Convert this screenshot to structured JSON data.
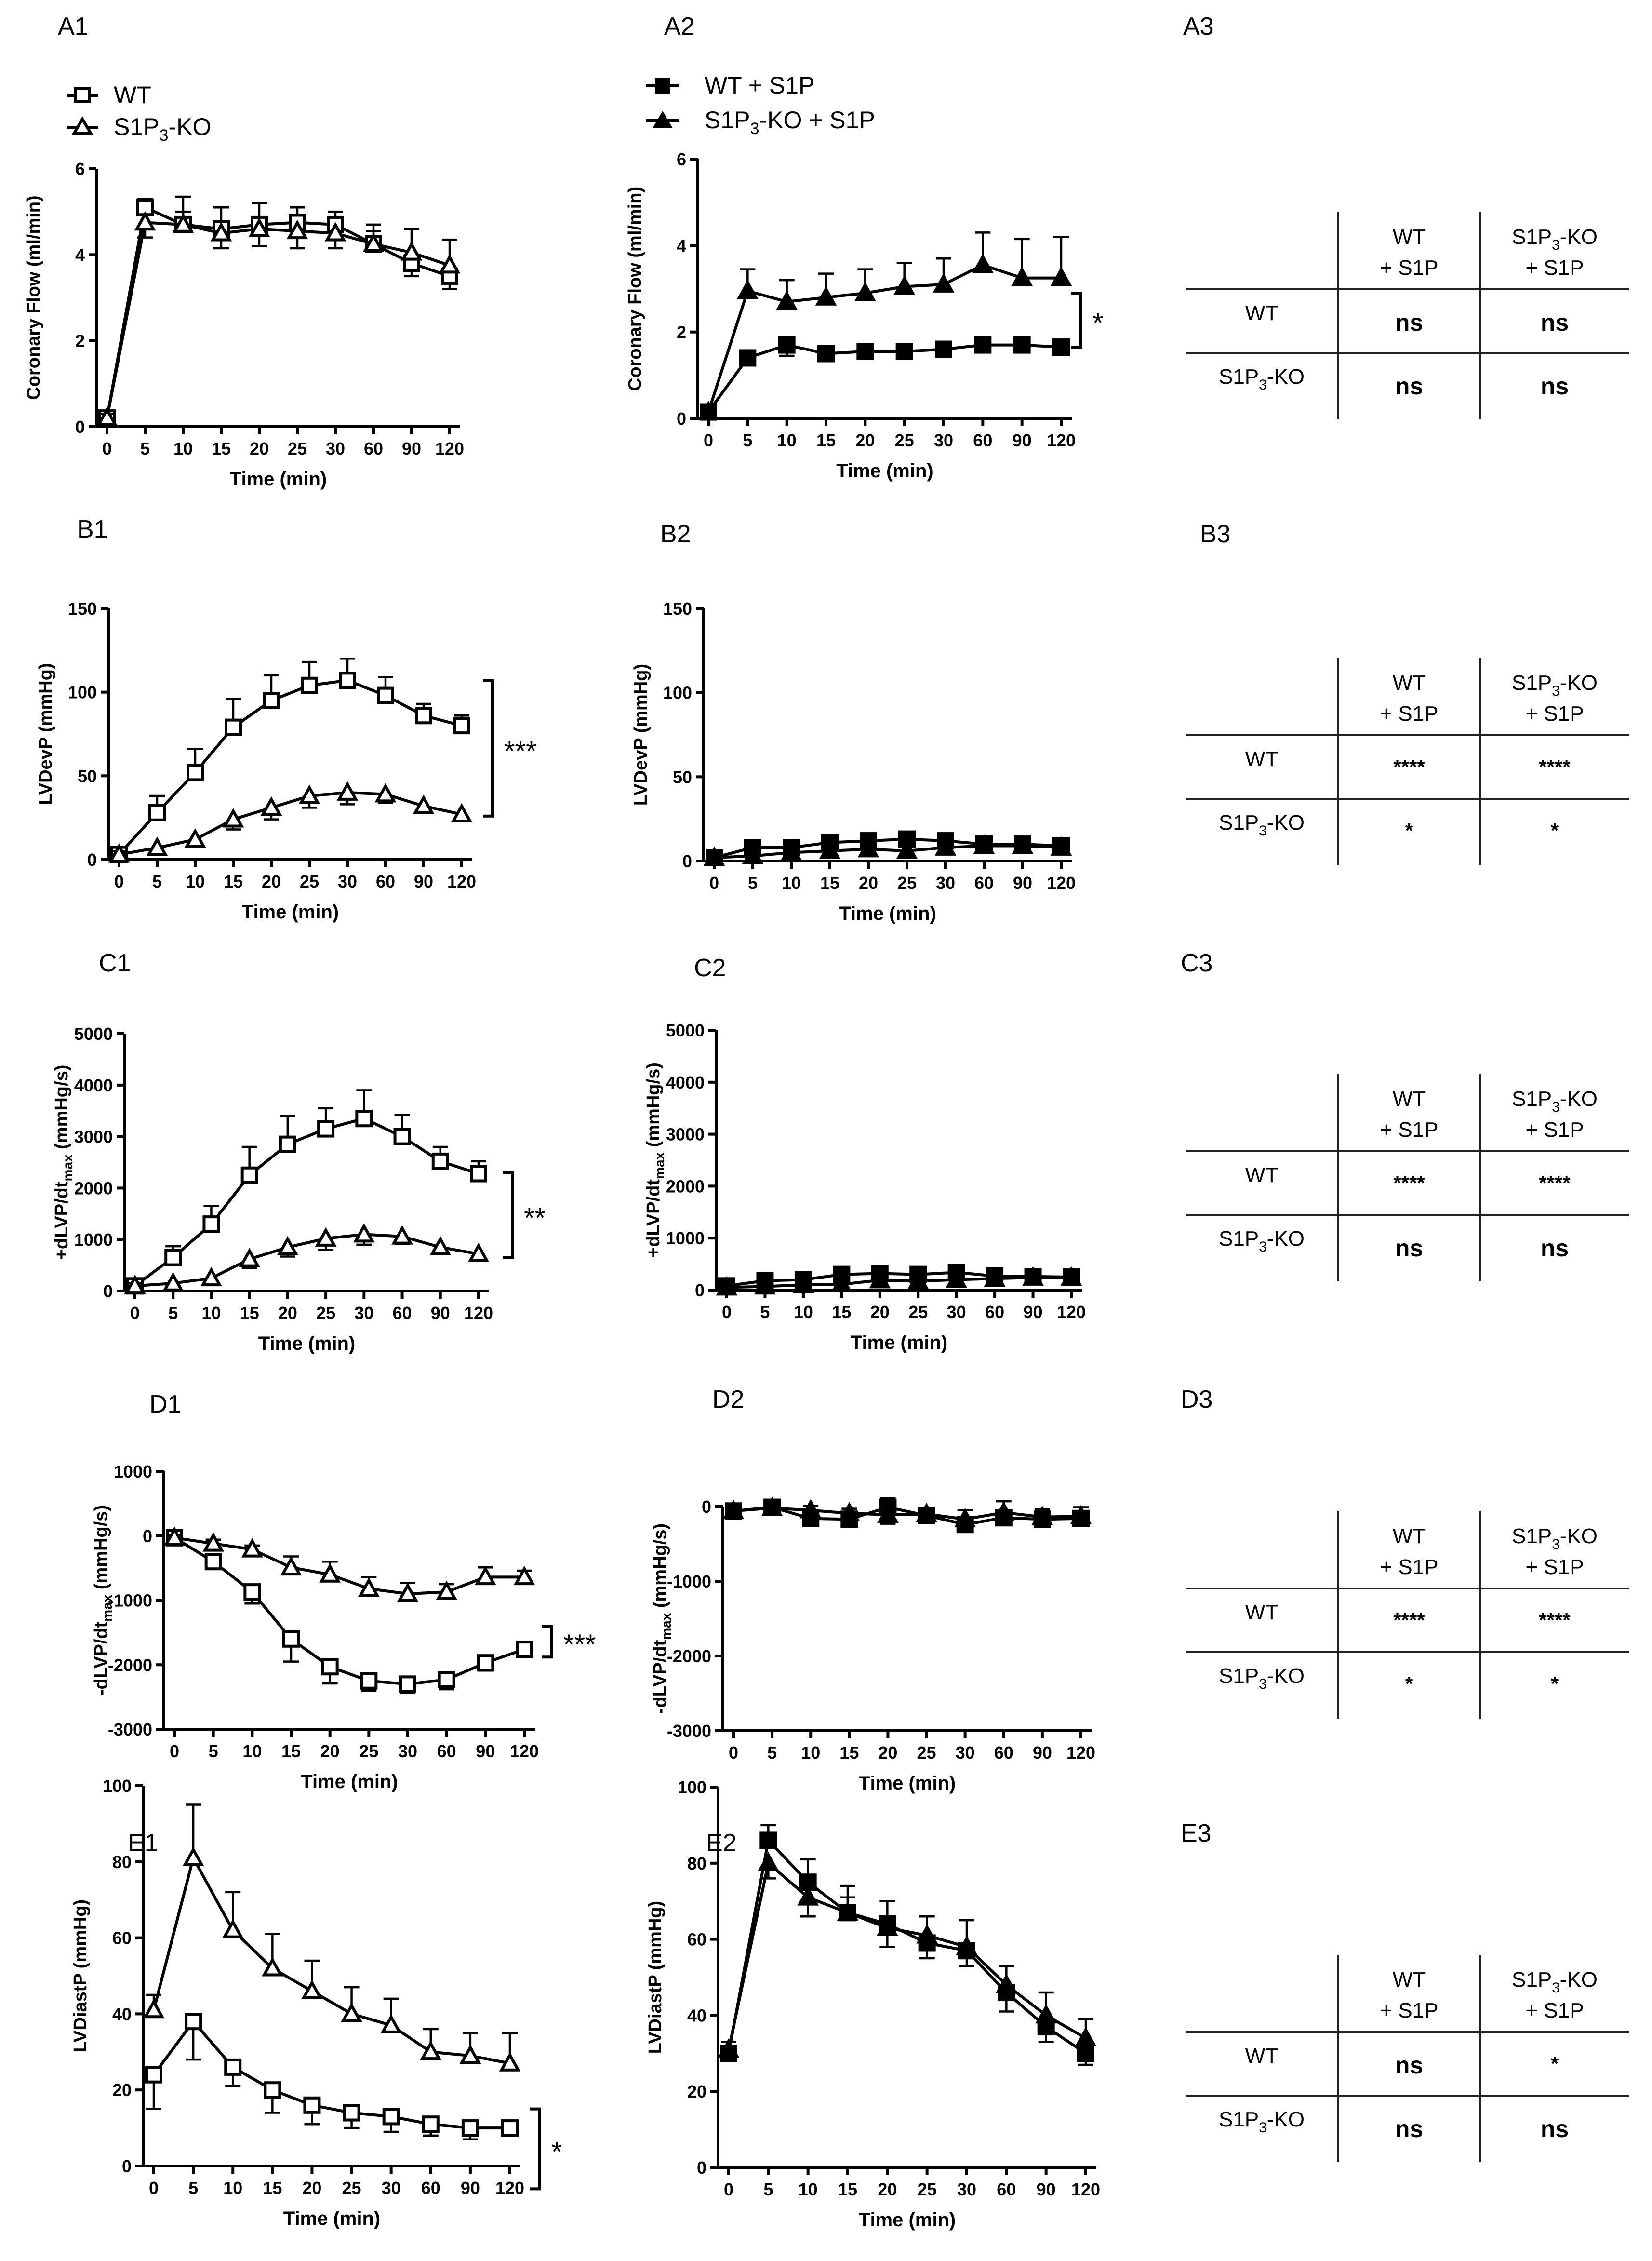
{
  "panel_labels": {
    "A1": "A1",
    "A2": "A2",
    "A3": "A3",
    "B1": "B1",
    "B2": "B2",
    "B3": "B3",
    "C1": "C1",
    "C2": "C2",
    "C3": "C3",
    "D1": "D1",
    "D2": "D2",
    "D3": "D3",
    "E1": "E1",
    "E2": "E2",
    "E3": "E3"
  },
  "legend": {
    "wt": "WT",
    "ko_pre": "S1P",
    "ko_sub": "3",
    "ko_post": "-KO",
    "wt_s1p": "WT + S1P",
    "ko_s1p_pre": "S1P",
    "ko_s1p_sub": "3",
    "ko_s1p_post": "-KO + S1P"
  },
  "colors": {
    "ink": "#000000",
    "open_marker": "#ffffff",
    "filled_marker": "#000000"
  },
  "chart_data": [
    {
      "id": "A1",
      "type": "line",
      "xlabel": "Time (min)",
      "ylabel": "Coronary Flow (ml/min)",
      "categories": [
        "0",
        "5",
        "10",
        "15",
        "20",
        "25",
        "30",
        "60",
        "90",
        "120"
      ],
      "ylim": [
        0,
        6
      ],
      "yticks": [
        0,
        2,
        4,
        6
      ],
      "significance": "",
      "series": [
        {
          "name": "WT",
          "marker": "open-square",
          "values": [
            0.2,
            5.1,
            4.7,
            4.6,
            4.7,
            4.75,
            4.7,
            4.25,
            3.8,
            3.5
          ],
          "errors": [
            0.1,
            0.2,
            0.65,
            0.5,
            0.5,
            0.35,
            0.3,
            0.3,
            0.3,
            0.3
          ]
        },
        {
          "name": "S1P3-KO",
          "marker": "open-triangle",
          "values": [
            0.2,
            4.75,
            4.7,
            4.5,
            4.6,
            4.55,
            4.5,
            4.25,
            4.05,
            3.75
          ],
          "errors": [
            0.1,
            0.35,
            0.3,
            0.35,
            0.4,
            0.4,
            0.35,
            0.45,
            0.55,
            0.6
          ]
        }
      ]
    },
    {
      "id": "A2",
      "type": "line",
      "xlabel": "Time (min)",
      "ylabel": "Coronary Flow (ml/min)",
      "categories": [
        "0",
        "5",
        "10",
        "15",
        "20",
        "25",
        "30",
        "60",
        "90",
        "120"
      ],
      "ylim": [
        0,
        6
      ],
      "yticks": [
        0,
        2,
        4,
        6
      ],
      "significance": "*",
      "series": [
        {
          "name": "WT + S1P",
          "marker": "filled-square",
          "values": [
            0.15,
            1.4,
            1.7,
            1.5,
            1.55,
            1.55,
            1.6,
            1.7,
            1.7,
            1.65
          ],
          "errors": [
            0.1,
            0.15,
            0.25,
            0.15,
            0.15,
            0.15,
            0.15,
            0.1,
            0.1,
            0.1
          ]
        },
        {
          "name": "S1P3-KO + S1P",
          "marker": "filled-triangle",
          "values": [
            0.15,
            2.95,
            2.7,
            2.8,
            2.9,
            3.05,
            3.1,
            3.55,
            3.25,
            3.25
          ],
          "errors": [
            0.1,
            0.5,
            0.5,
            0.55,
            0.55,
            0.55,
            0.6,
            0.75,
            0.9,
            0.95
          ]
        }
      ]
    },
    {
      "id": "B1",
      "type": "line",
      "xlabel": "Time (min)",
      "ylabel": "LVDevP (mmHg)",
      "categories": [
        "0",
        "5",
        "10",
        "15",
        "20",
        "25",
        "30",
        "60",
        "90",
        "120"
      ],
      "ylim": [
        0,
        150
      ],
      "yticks": [
        0,
        50,
        100,
        150
      ],
      "significance": "***",
      "series": [
        {
          "name": "WT",
          "marker": "open-square",
          "values": [
            3,
            28,
            52,
            79,
            95,
            104,
            107,
            98,
            86,
            80
          ],
          "errors": [
            2,
            10,
            14,
            17,
            15,
            14,
            13,
            11,
            7,
            6
          ]
        },
        {
          "name": "S1P3-KO",
          "marker": "open-triangle",
          "values": [
            3,
            7,
            12,
            24,
            31,
            38,
            40,
            39,
            32,
            27
          ],
          "errors": [
            2,
            4,
            4,
            6,
            7,
            7,
            7,
            5,
            4,
            4
          ]
        }
      ]
    },
    {
      "id": "B2",
      "type": "line",
      "xlabel": "Time (min)",
      "ylabel": "LVDevP (mmHg)",
      "categories": [
        "0",
        "5",
        "10",
        "15",
        "20",
        "25",
        "30",
        "60",
        "90",
        "120"
      ],
      "ylim": [
        0,
        150
      ],
      "yticks": [
        0,
        50,
        100,
        150
      ],
      "significance": "",
      "series": [
        {
          "name": "WT + S1P",
          "marker": "filled-square",
          "values": [
            2,
            8,
            8,
            11,
            12,
            13,
            12,
            10,
            10,
            9
          ],
          "errors": [
            1,
            2,
            2,
            2,
            2,
            2,
            2,
            2,
            2,
            2
          ]
        },
        {
          "name": "S1P3-KO + S1P",
          "marker": "filled-triangle",
          "values": [
            2,
            3,
            5,
            6,
            7,
            6,
            8,
            9,
            9,
            8
          ],
          "errors": [
            1,
            2,
            2,
            2,
            2,
            2,
            2,
            2,
            2,
            2
          ]
        }
      ]
    },
    {
      "id": "C1",
      "type": "line",
      "xlabel": "Time (min)",
      "ylabel_pre": "+dLVP/dt",
      "ylabel_sub": "max",
      "ylabel_post": " (mmHg/s)",
      "categories": [
        "0",
        "5",
        "10",
        "15",
        "20",
        "25",
        "30",
        "60",
        "90",
        "120"
      ],
      "ylim": [
        0,
        5000
      ],
      "yticks": [
        0,
        1000,
        2000,
        3000,
        4000,
        5000
      ],
      "significance": "**",
      "series": [
        {
          "name": "WT",
          "marker": "open-square",
          "values": [
            100,
            650,
            1300,
            2250,
            2850,
            3150,
            3350,
            3000,
            2520,
            2280
          ],
          "errors": [
            50,
            220,
            350,
            550,
            550,
            400,
            550,
            420,
            280,
            240
          ]
        },
        {
          "name": "S1P3-KO",
          "marker": "open-triangle",
          "values": [
            100,
            150,
            250,
            620,
            850,
            1020,
            1100,
            1060,
            850,
            720
          ],
          "errors": [
            50,
            50,
            60,
            170,
            180,
            220,
            200,
            140,
            120,
            120
          ]
        }
      ]
    },
    {
      "id": "C2",
      "type": "line",
      "xlabel": "Time (min)",
      "ylabel_pre": "+dLVP/dt",
      "ylabel_sub": "max",
      "ylabel_post": " (mmHg/s)",
      "categories": [
        "0",
        "5",
        "10",
        "15",
        "20",
        "25",
        "30",
        "60",
        "90",
        "120"
      ],
      "ylim": [
        0,
        5000
      ],
      "yticks": [
        0,
        1000,
        2000,
        3000,
        4000,
        5000
      ],
      "significance": "",
      "series": [
        {
          "name": "WT + S1P",
          "marker": "filled-square",
          "values": [
            80,
            180,
            200,
            300,
            320,
            300,
            340,
            270,
            260,
            250
          ],
          "errors": [
            40,
            60,
            60,
            70,
            70,
            60,
            70,
            60,
            60,
            60
          ]
        },
        {
          "name": "S1P3-KO + S1P",
          "marker": "filled-triangle",
          "values": [
            50,
            70,
            100,
            110,
            190,
            170,
            200,
            220,
            240,
            240
          ],
          "errors": [
            30,
            40,
            40,
            50,
            60,
            60,
            60,
            60,
            60,
            60
          ]
        }
      ]
    },
    {
      "id": "D1",
      "type": "line",
      "xlabel": "Time (min)",
      "ylabel_pre": "-dLVP/dt",
      "ylabel_sub": "max",
      "ylabel_post": " (mmHg/s)",
      "categories": [
        "0",
        "5",
        "10",
        "15",
        "20",
        "25",
        "30",
        "60",
        "90",
        "120"
      ],
      "ylim": [
        -3000,
        1000
      ],
      "yticks": [
        -3000,
        -2000,
        -1000,
        0,
        1000
      ],
      "significance": "***",
      "series": [
        {
          "name": "WT",
          "marker": "open-square",
          "values": [
            -30,
            -400,
            -870,
            -1600,
            -2030,
            -2250,
            -2300,
            -2230,
            -1970,
            -1760
          ],
          "errors": [
            40,
            80,
            180,
            350,
            260,
            150,
            130,
            150,
            120,
            120
          ]
        },
        {
          "name": "S1P3-KO",
          "marker": "open-triangle",
          "values": [
            -30,
            -120,
            -210,
            -490,
            -600,
            -820,
            -900,
            -870,
            -640,
            -640
          ],
          "errors": [
            40,
            60,
            60,
            170,
            200,
            180,
            170,
            120,
            150,
            100
          ]
        }
      ]
    },
    {
      "id": "D2",
      "type": "line",
      "xlabel": "Time (min)",
      "ylabel_pre": "-dLVP/dt",
      "ylabel_sub": "max",
      "ylabel_post": " (mmHg/s)",
      "categories": [
        "0",
        "5",
        "10",
        "15",
        "20",
        "25",
        "30",
        "60",
        "90",
        "120"
      ],
      "ylim": [
        -3000,
        0
      ],
      "yticks": [
        -3000,
        -2000,
        -1000,
        0
      ],
      "significance": "",
      "series": [
        {
          "name": "WT + S1P",
          "marker": "filled-square",
          "values": [
            -60,
            -10,
            -160,
            -170,
            -10,
            -120,
            -240,
            -150,
            -170,
            -160
          ],
          "errors": [
            40,
            40,
            60,
            60,
            120,
            60,
            70,
            80,
            60,
            70
          ]
        },
        {
          "name": "S1P3-KO + S1P",
          "marker": "filled-triangle",
          "values": [
            -60,
            -20,
            -50,
            -90,
            -110,
            -100,
            -170,
            -80,
            -140,
            -130
          ],
          "errors": [
            40,
            40,
            60,
            60,
            120,
            70,
            120,
            150,
            100,
            120
          ]
        }
      ]
    },
    {
      "id": "E1",
      "type": "line",
      "xlabel": "Time (min)",
      "ylabel": "LVDiastP (mmHg)",
      "categories": [
        "0",
        "5",
        "10",
        "15",
        "20",
        "25",
        "30",
        "60",
        "90",
        "120"
      ],
      "ylim": [
        0,
        100
      ],
      "yticks": [
        0,
        20,
        40,
        60,
        80,
        100
      ],
      "significance": "*",
      "series": [
        {
          "name": "WT",
          "marker": "open-square",
          "values": [
            24,
            38,
            26,
            20,
            16,
            14,
            13,
            11,
            10,
            10
          ],
          "errors": [
            9,
            10,
            5,
            6,
            5,
            4,
            4,
            3,
            3,
            2
          ]
        },
        {
          "name": "S1P3-KO",
          "marker": "open-triangle",
          "values": [
            41,
            81,
            62,
            52,
            46,
            40,
            37,
            30,
            29,
            27
          ],
          "errors": [
            4,
            14,
            10,
            9,
            8,
            7,
            7,
            6,
            6,
            8
          ]
        }
      ]
    },
    {
      "id": "E2",
      "type": "line",
      "xlabel": "Time (min)",
      "ylabel": "LVDiastP (mmHg)",
      "categories": [
        "0",
        "5",
        "10",
        "15",
        "20",
        "25",
        "30",
        "60",
        "90",
        "120"
      ],
      "ylim": [
        0,
        100
      ],
      "yticks": [
        0,
        20,
        40,
        60,
        80,
        100
      ],
      "significance": "",
      "series": [
        {
          "name": "WT + S1P",
          "marker": "filled-square",
          "values": [
            30,
            86,
            75,
            67,
            64,
            59,
            57,
            46,
            37,
            30
          ],
          "errors": [
            2,
            4,
            6,
            4,
            6,
            4,
            4,
            5,
            4,
            3
          ]
        },
        {
          "name": "S1P3-KO + S1P",
          "marker": "filled-triangle",
          "values": [
            31,
            80,
            71,
            67,
            63,
            61,
            58,
            48,
            40,
            34
          ],
          "errors": [
            2,
            4,
            5,
            7,
            5,
            5,
            7,
            5,
            6,
            5
          ]
        }
      ]
    },
    {
      "id": "A3",
      "type": "table",
      "col_headers": [
        [
          "WT",
          "+ S1P"
        ],
        [
          "S1P|3|-KO",
          "+ S1P"
        ]
      ],
      "row_headers": [
        "WT",
        "S1P|3|-KO"
      ],
      "cells": [
        [
          "ns",
          "ns"
        ],
        [
          "ns",
          "ns"
        ]
      ]
    },
    {
      "id": "B3",
      "type": "table",
      "col_headers": [
        [
          "WT",
          "+ S1P"
        ],
        [
          "S1P|3|-KO",
          "+ S1P"
        ]
      ],
      "row_headers": [
        "WT",
        "S1P|3|-KO"
      ],
      "cells": [
        [
          "****",
          "****"
        ],
        [
          "*",
          "*"
        ]
      ]
    },
    {
      "id": "C3",
      "type": "table",
      "col_headers": [
        [
          "WT",
          "+ S1P"
        ],
        [
          "S1P|3|-KO",
          "+ S1P"
        ]
      ],
      "row_headers": [
        "WT",
        "S1P|3|-KO"
      ],
      "cells": [
        [
          "****",
          "****"
        ],
        [
          "ns",
          "ns"
        ]
      ]
    },
    {
      "id": "D3",
      "type": "table",
      "col_headers": [
        [
          "WT",
          "+ S1P"
        ],
        [
          "S1P|3|-KO",
          "+ S1P"
        ]
      ],
      "row_headers": [
        "WT",
        "S1P|3|-KO"
      ],
      "cells": [
        [
          "****",
          "****"
        ],
        [
          "*",
          "*"
        ]
      ]
    },
    {
      "id": "E3",
      "type": "table",
      "col_headers": [
        [
          "WT",
          "+ S1P"
        ],
        [
          "S1P|3|-KO",
          "+ S1P"
        ]
      ],
      "row_headers": [
        "WT",
        "S1P|3|-KO"
      ],
      "cells": [
        [
          "ns",
          "*"
        ],
        [
          "ns",
          "ns"
        ]
      ]
    }
  ]
}
